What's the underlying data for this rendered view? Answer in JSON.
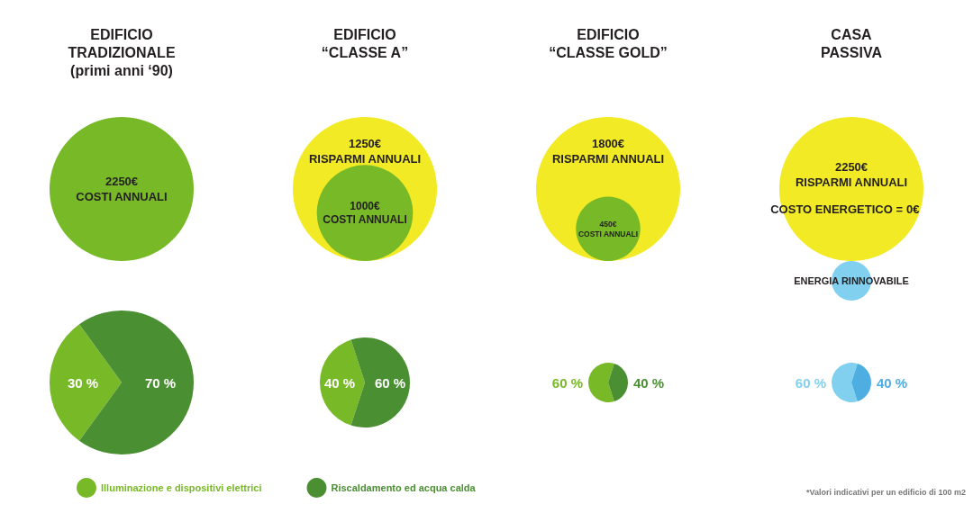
{
  "chart_data": [
    {
      "type": "other",
      "title": "EDIFICIO\nTRADIZIONALE\n(primi anni ‘90)",
      "series": [
        {
          "name": "COSTI ANNUALI",
          "color": "#78b928",
          "values": [
            2250
          ],
          "value_labels": [
            "2250€"
          ]
        }
      ]
    },
    {
      "type": "other",
      "title": "EDIFICIO\n“CLASSE A”",
      "series": [
        {
          "name": "RISPARMI ANNUALI",
          "color": "#f2ea24",
          "values": [
            1250
          ],
          "value_labels": [
            "1250€"
          ]
        },
        {
          "name": "COSTI ANNUALI",
          "color": "#78b928",
          "values": [
            1000
          ],
          "value_labels": [
            "1000€"
          ]
        }
      ]
    },
    {
      "type": "other",
      "title": "EDIFICIO\n“CLASSE GOLD”",
      "series": [
        {
          "name": "RISPARMI ANNUALI",
          "color": "#f2ea24",
          "values": [
            1800
          ],
          "value_labels": [
            "1800€"
          ]
        },
        {
          "name": "COSTI ANNUALI",
          "color": "#78b928",
          "values": [
            450
          ],
          "value_labels": [
            "450€"
          ]
        }
      ]
    },
    {
      "type": "other",
      "title": "CASA\nPASSIVA",
      "annotations": [
        "ENERGIA RINNOVABILE"
      ],
      "series": [
        {
          "name": "RISPARMI ANNUALI",
          "color": "#f2ea24",
          "values": [
            2250
          ],
          "value_labels": [
            "2250€"
          ]
        },
        {
          "name": "COSTO ENERGETICO =",
          "values": [
            0
          ],
          "value_labels": [
            "0€"
          ]
        }
      ]
    },
    {
      "type": "pie",
      "categories": [
        null,
        null
      ],
      "values": [
        30,
        70
      ],
      "colors": [
        "#78b928",
        "#4a8f32"
      ],
      "value_labels": [
        "30 %",
        "70 %"
      ]
    },
    {
      "type": "pie",
      "categories": [
        "Illuminazione e dispositivi elettrici",
        "Riscaldamento ed acqua calda"
      ],
      "values": [
        40,
        60
      ],
      "colors": [
        "#78b928",
        "#4a8f32"
      ],
      "value_labels": [
        "40 %",
        "60 %"
      ],
      "legend": "bottom"
    },
    {
      "type": "pie",
      "categories": [
        null,
        null
      ],
      "values": [
        60,
        40
      ],
      "colors": [
        "#78b928",
        "#4a8f32"
      ],
      "value_labels": [
        "60 %",
        "40 %"
      ]
    },
    {
      "type": "pie",
      "categories": [
        null,
        null
      ],
      "values": [
        60,
        40
      ],
      "colors": [
        "#82d0ef",
        "#4eaee2"
      ],
      "value_labels": [
        "60 %",
        "40 %"
      ],
      "annotations": [
        "*Valori indicativi per un edificio di 100 m2"
      ]
    }
  ]
}
